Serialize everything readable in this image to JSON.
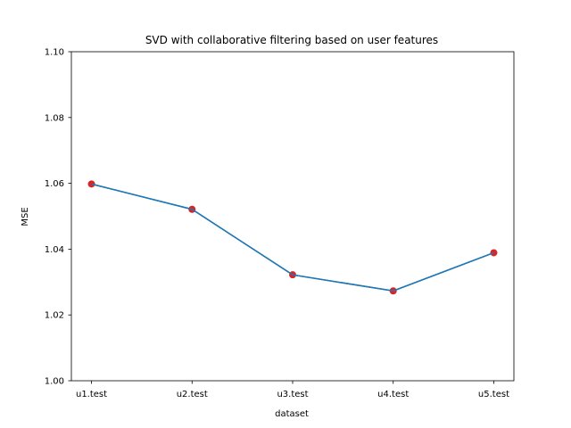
{
  "chart_data": {
    "type": "line",
    "title": "SVD with collaborative filtering based on user features",
    "xlabel": "dataset",
    "ylabel": "MSE",
    "categories": [
      "u1.test",
      "u2.test",
      "u3.test",
      "u4.test",
      "u5.test"
    ],
    "series": [
      {
        "values": [
          1.0598,
          1.0521,
          1.0322,
          1.0273,
          1.0389
        ],
        "line_color": "#1f77b4",
        "marker_color": "#d62728"
      }
    ],
    "ylim": [
      1.0,
      1.1
    ],
    "yticks": [
      "1.00",
      "1.02",
      "1.04",
      "1.06",
      "1.08",
      "1.10"
    ],
    "grid": false,
    "legend": "none"
  }
}
